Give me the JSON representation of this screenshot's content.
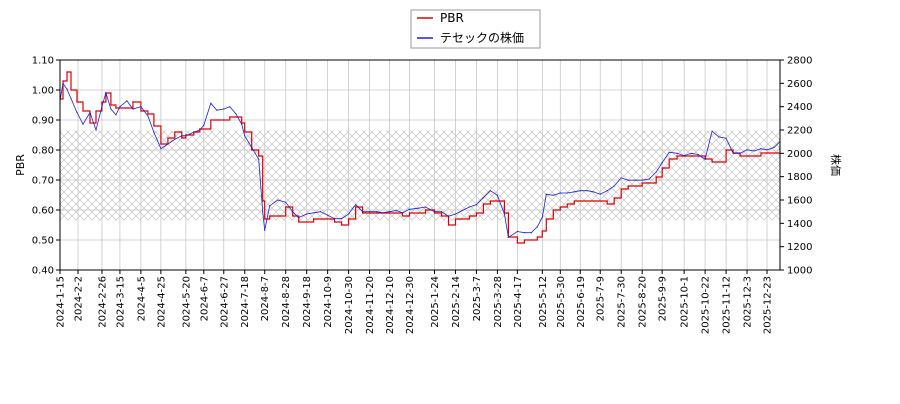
{
  "chart_data": {
    "type": "line",
    "title": "",
    "xlabel": "",
    "ylabel_left": "PBR",
    "ylabel_right": "株価",
    "ylim_left": [
      0.4,
      1.1
    ],
    "ylim_right": [
      1000,
      2800
    ],
    "yticks_left": [
      "0.40",
      "0.50",
      "0.60",
      "0.70",
      "0.80",
      "0.90",
      "1.00",
      "1.10"
    ],
    "yticks_right": [
      "1000",
      "1200",
      "1400",
      "1600",
      "1800",
      "2000",
      "2200",
      "2400",
      "2600",
      "2800"
    ],
    "x_range": [
      "2024-01-15",
      "2026-01-05"
    ],
    "xticks": [
      "2024-1-15",
      "2024-2-2",
      "2024-2-26",
      "2024-3-15",
      "2024-4-5",
      "2024-4-25",
      "2024-5-20",
      "2024-6-7",
      "2024-6-27",
      "2024-7-18",
      "2024-8-7",
      "2024-8-28",
      "2024-9-18",
      "2024-10-9",
      "2024-10-30",
      "2024-11-20",
      "2024-12-10",
      "2024-12-30",
      "2025-1-24",
      "2025-2-14",
      "2025-3-7",
      "2025-3-28",
      "2025-4-17",
      "2025-5-12",
      "2025-5-30",
      "2025-6-19",
      "2025-7-9",
      "2025-7-30",
      "2025-8-20",
      "2025-9-9",
      "2025-10-1",
      "2025-10-22",
      "2025-11-12",
      "2025-12-3",
      "2025-12-23"
    ],
    "grid": true,
    "legend_position": "top-center",
    "band": {
      "pbr_low": 0.565,
      "pbr_high": 0.865
    },
    "series": [
      {
        "name": "PBR",
        "axis": "left",
        "color": "#e00000",
        "x": [
          "2024-01-15",
          "2024-01-18",
          "2024-01-22",
          "2024-01-26",
          "2024-02-01",
          "2024-02-07",
          "2024-02-14",
          "2024-02-20",
          "2024-02-26",
          "2024-03-01",
          "2024-03-06",
          "2024-03-11",
          "2024-03-15",
          "2024-03-22",
          "2024-03-28",
          "2024-04-05",
          "2024-04-12",
          "2024-04-18",
          "2024-04-25",
          "2024-05-02",
          "2024-05-09",
          "2024-05-16",
          "2024-05-20",
          "2024-05-28",
          "2024-06-03",
          "2024-06-07",
          "2024-06-14",
          "2024-06-20",
          "2024-06-27",
          "2024-07-03",
          "2024-07-09",
          "2024-07-15",
          "2024-07-18",
          "2024-07-25",
          "2024-08-01",
          "2024-08-05",
          "2024-08-07",
          "2024-08-12",
          "2024-08-20",
          "2024-08-28",
          "2024-09-04",
          "2024-09-10",
          "2024-09-18",
          "2024-09-25",
          "2024-10-02",
          "2024-10-09",
          "2024-10-16",
          "2024-10-23",
          "2024-10-30",
          "2024-11-06",
          "2024-11-13",
          "2024-11-20",
          "2024-11-27",
          "2024-12-03",
          "2024-12-10",
          "2024-12-17",
          "2024-12-23",
          "2024-12-30",
          "2025-01-08",
          "2025-01-15",
          "2025-01-24",
          "2025-01-31",
          "2025-02-07",
          "2025-02-14",
          "2025-02-21",
          "2025-02-28",
          "2025-03-07",
          "2025-03-14",
          "2025-03-21",
          "2025-03-28",
          "2025-04-04",
          "2025-04-08",
          "2025-04-17",
          "2025-04-24",
          "2025-05-01",
          "2025-05-07",
          "2025-05-12",
          "2025-05-16",
          "2025-05-23",
          "2025-05-30",
          "2025-06-06",
          "2025-06-13",
          "2025-06-19",
          "2025-06-26",
          "2025-07-02",
          "2025-07-09",
          "2025-07-16",
          "2025-07-23",
          "2025-07-30",
          "2025-08-06",
          "2025-08-13",
          "2025-08-20",
          "2025-08-27",
          "2025-09-03",
          "2025-09-09",
          "2025-09-16",
          "2025-09-24",
          "2025-10-01",
          "2025-10-08",
          "2025-10-15",
          "2025-10-22",
          "2025-10-29",
          "2025-11-05",
          "2025-11-12",
          "2025-11-19",
          "2025-11-26",
          "2025-12-03",
          "2025-12-10",
          "2025-12-17",
          "2025-12-23",
          "2025-12-30",
          "2026-01-05"
        ],
        "values": [
          0.97,
          1.03,
          1.06,
          1.0,
          0.96,
          0.93,
          0.89,
          0.93,
          0.96,
          0.99,
          0.95,
          0.94,
          0.94,
          0.94,
          0.96,
          0.93,
          0.92,
          0.88,
          0.82,
          0.84,
          0.86,
          0.84,
          0.85,
          0.86,
          0.87,
          0.87,
          0.9,
          0.9,
          0.9,
          0.91,
          0.91,
          0.89,
          0.86,
          0.8,
          0.78,
          0.63,
          0.57,
          0.58,
          0.58,
          0.61,
          0.58,
          0.56,
          0.56,
          0.57,
          0.57,
          0.57,
          0.56,
          0.55,
          0.57,
          0.61,
          0.59,
          0.59,
          0.59,
          0.59,
          0.59,
          0.59,
          0.58,
          0.59,
          0.59,
          0.6,
          0.59,
          0.58,
          0.55,
          0.57,
          0.57,
          0.58,
          0.59,
          0.62,
          0.63,
          0.63,
          0.59,
          0.51,
          0.49,
          0.5,
          0.5,
          0.51,
          0.53,
          0.57,
          0.6,
          0.61,
          0.62,
          0.63,
          0.63,
          0.63,
          0.63,
          0.63,
          0.62,
          0.64,
          0.67,
          0.68,
          0.68,
          0.69,
          0.69,
          0.71,
          0.74,
          0.77,
          0.78,
          0.78,
          0.78,
          0.78,
          0.77,
          0.76,
          0.76,
          0.8,
          0.79,
          0.78,
          0.78,
          0.78,
          0.79,
          0.79,
          0.79,
          0.82
        ]
      },
      {
        "name": "テセックの株価",
        "axis": "right",
        "color": "#2020cc",
        "x": [
          "2024-01-15",
          "2024-01-18",
          "2024-01-22",
          "2024-01-26",
          "2024-02-01",
          "2024-02-07",
          "2024-02-14",
          "2024-02-20",
          "2024-02-26",
          "2024-03-01",
          "2024-03-06",
          "2024-03-11",
          "2024-03-15",
          "2024-03-22",
          "2024-03-28",
          "2024-04-05",
          "2024-04-12",
          "2024-04-18",
          "2024-04-25",
          "2024-05-02",
          "2024-05-09",
          "2024-05-16",
          "2024-05-20",
          "2024-05-28",
          "2024-06-03",
          "2024-06-07",
          "2024-06-14",
          "2024-06-20",
          "2024-06-27",
          "2024-07-03",
          "2024-07-09",
          "2024-07-15",
          "2024-07-18",
          "2024-07-25",
          "2024-08-01",
          "2024-08-05",
          "2024-08-07",
          "2024-08-12",
          "2024-08-20",
          "2024-08-28",
          "2024-09-04",
          "2024-09-10",
          "2024-09-18",
          "2024-09-25",
          "2024-10-02",
          "2024-10-09",
          "2024-10-16",
          "2024-10-23",
          "2024-10-30",
          "2024-11-06",
          "2024-11-13",
          "2024-11-20",
          "2024-11-27",
          "2024-12-03",
          "2024-12-10",
          "2024-12-17",
          "2024-12-23",
          "2024-12-30",
          "2025-01-08",
          "2025-01-15",
          "2025-01-24",
          "2025-01-31",
          "2025-02-07",
          "2025-02-14",
          "2025-02-21",
          "2025-02-28",
          "2025-03-07",
          "2025-03-14",
          "2025-03-21",
          "2025-03-28",
          "2025-04-04",
          "2025-04-08",
          "2025-04-17",
          "2025-04-24",
          "2025-05-01",
          "2025-05-07",
          "2025-05-12",
          "2025-05-16",
          "2025-05-23",
          "2025-05-30",
          "2025-06-06",
          "2025-06-13",
          "2025-06-19",
          "2025-06-26",
          "2025-07-02",
          "2025-07-09",
          "2025-07-16",
          "2025-07-23",
          "2025-07-30",
          "2025-08-06",
          "2025-08-13",
          "2025-08-20",
          "2025-08-27",
          "2025-09-03",
          "2025-09-09",
          "2025-09-16",
          "2025-09-24",
          "2025-10-01",
          "2025-10-08",
          "2025-10-15",
          "2025-10-22",
          "2025-10-29",
          "2025-11-05",
          "2025-11-12",
          "2025-11-19",
          "2025-11-26",
          "2025-12-03",
          "2025-12-10",
          "2025-12-17",
          "2025-12-23",
          "2025-12-30",
          "2026-01-05"
        ],
        "values": [
          2450,
          2600,
          2550,
          2470,
          2350,
          2250,
          2350,
          2200,
          2400,
          2520,
          2380,
          2330,
          2400,
          2450,
          2380,
          2400,
          2320,
          2180,
          2040,
          2080,
          2120,
          2150,
          2150,
          2180,
          2200,
          2240,
          2430,
          2370,
          2380,
          2400,
          2340,
          2250,
          2150,
          2050,
          1950,
          1500,
          1340,
          1550,
          1600,
          1580,
          1500,
          1450,
          1480,
          1490,
          1500,
          1470,
          1440,
          1440,
          1480,
          1560,
          1500,
          1500,
          1500,
          1490,
          1500,
          1510,
          1490,
          1520,
          1530,
          1540,
          1500,
          1500,
          1460,
          1480,
          1510,
          1540,
          1560,
          1620,
          1680,
          1640,
          1480,
          1280,
          1330,
          1320,
          1320,
          1370,
          1450,
          1650,
          1640,
          1660,
          1660,
          1670,
          1680,
          1680,
          1670,
          1650,
          1680,
          1720,
          1790,
          1770,
          1770,
          1770,
          1780,
          1840,
          1920,
          2010,
          2000,
          1980,
          2000,
          1990,
          1950,
          2190,
          2140,
          2130,
          2000,
          2000,
          2030,
          2020,
          2040,
          2030,
          2050,
          2100
        ]
      }
    ]
  }
}
